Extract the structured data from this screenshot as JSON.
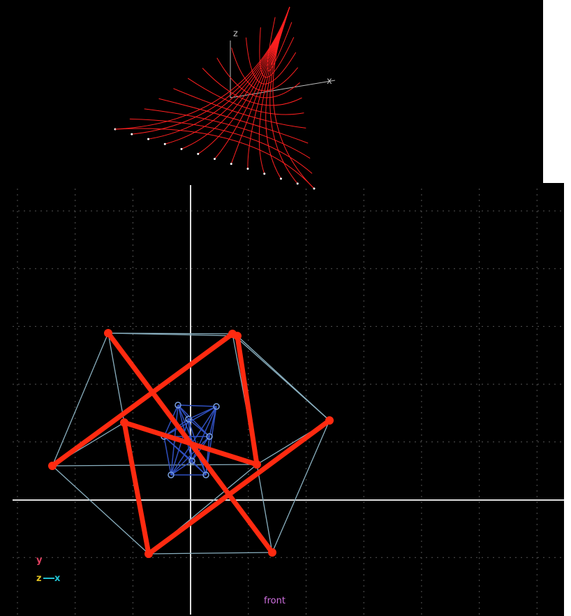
{
  "top_view": {
    "axis_labels": [
      "z",
      "x"
    ]
  },
  "front_view": {
    "axis_indicator": [
      "y",
      "z",
      "x"
    ],
    "label": "front"
  }
}
